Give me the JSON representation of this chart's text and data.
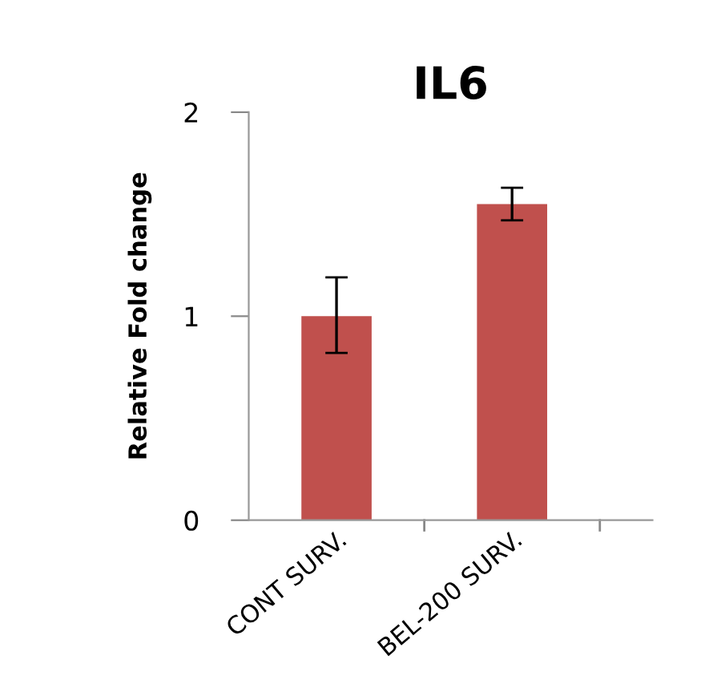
{
  "chart_data": {
    "type": "bar",
    "title": "IL6",
    "ylabel": "Relative Fold change",
    "categories": [
      "CONT SURV.",
      "BEL-200 SURV."
    ],
    "values": [
      1.0,
      1.55
    ],
    "errors": [
      [
        0.82,
        1.19
      ],
      [
        1.47,
        1.63
      ]
    ],
    "color": "#c0504d",
    "ylim": [
      0,
      2
    ],
    "yticks": [
      0,
      1,
      2
    ],
    "grid": false,
    "legend": false
  }
}
